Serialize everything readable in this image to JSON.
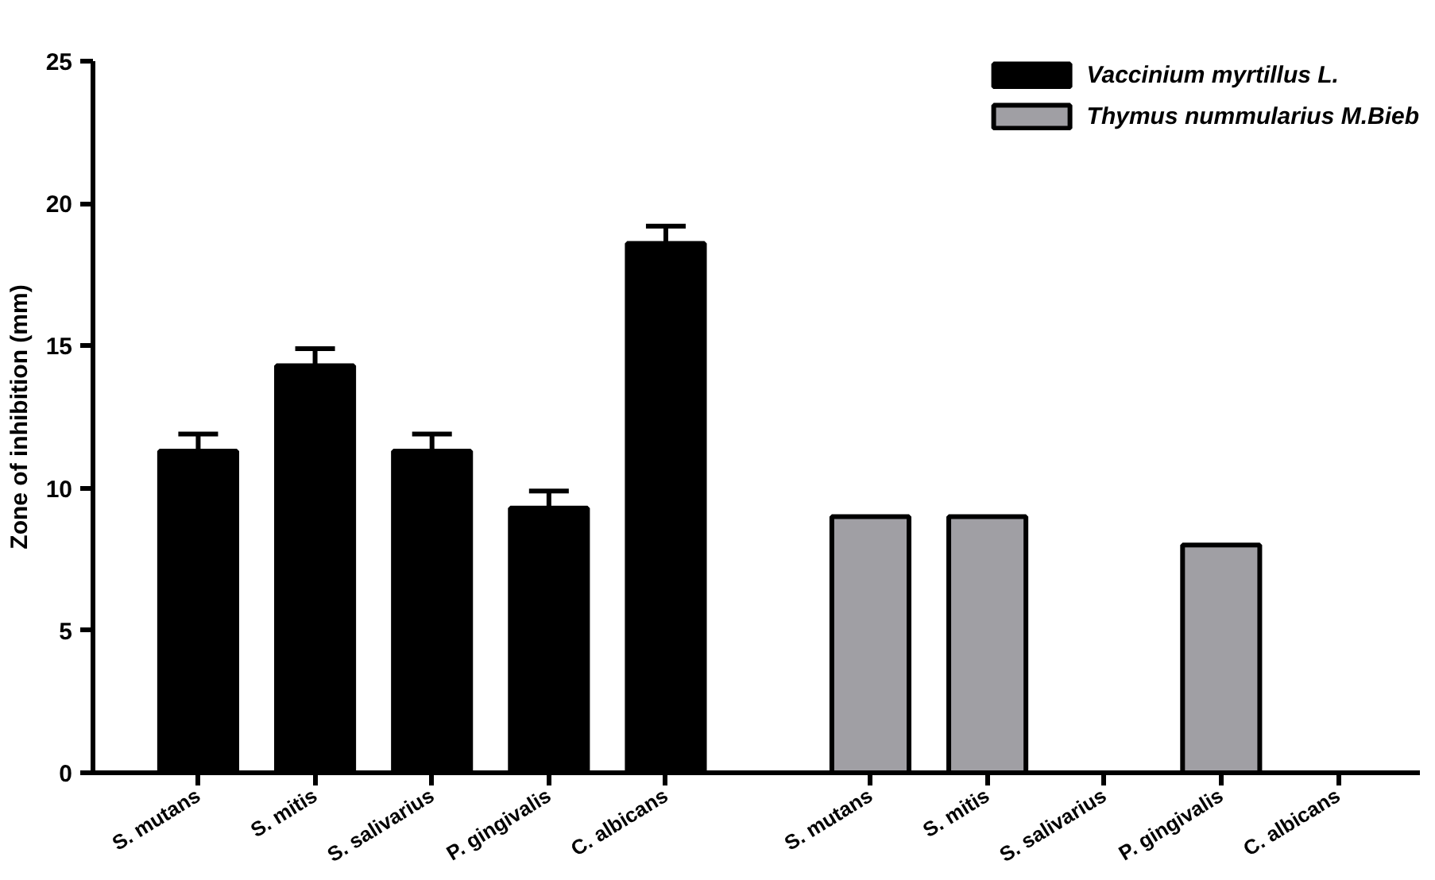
{
  "chart_data": {
    "type": "bar",
    "ylabel": "Zone of inhibition (mm)",
    "categories": [
      "S. mutans",
      "S. mitis",
      "S. salivarius",
      "P. gingivalis",
      "C. albicans",
      "S. mutans",
      "S. mitis",
      "S. salivarius",
      "P. gingivalis",
      "C. albicans"
    ],
    "series": [
      {
        "name": "Vaccinium myrtillus L.",
        "color": "#000000",
        "values": [
          11.3,
          14.3,
          11.3,
          9.3,
          18.6,
          null,
          null,
          null,
          null,
          null
        ],
        "errors": [
          0.6,
          0.6,
          0.6,
          0.6,
          0.6,
          null,
          null,
          null,
          null,
          null
        ]
      },
      {
        "name": "Thymus nummularius M.Bieb",
        "color": "#a09fa4",
        "values": [
          null,
          null,
          null,
          null,
          null,
          9,
          9,
          null,
          8,
          null
        ]
      }
    ],
    "ylim": [
      0,
      25
    ],
    "yticks": [
      0,
      5,
      10,
      15,
      20,
      25
    ],
    "grid": false,
    "legend": "top right"
  }
}
